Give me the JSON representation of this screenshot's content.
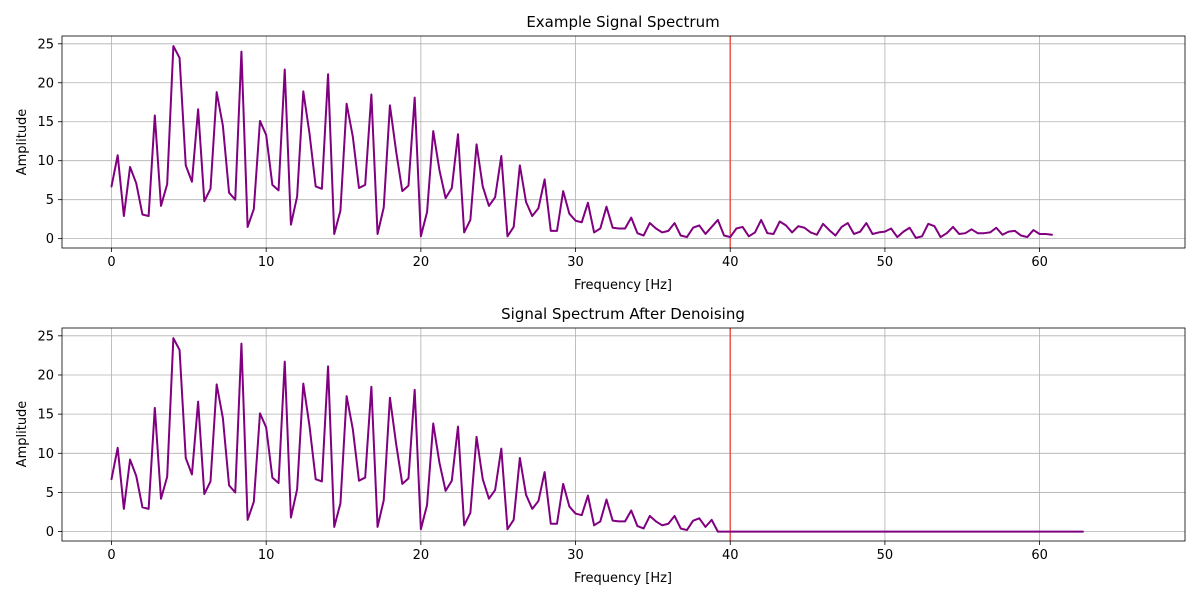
{
  "colors": {
    "signal": "#800080",
    "cutoff": "#e8564d",
    "grid": "#b0b0b0"
  },
  "chart_data": [
    {
      "type": "line",
      "title": "Example Signal Spectrum",
      "xlabel": "Frequency [Hz]",
      "ylabel": "Amplitude",
      "xlim": [
        -3.2,
        69.4
      ],
      "ylim": [
        -1.2,
        26.0
      ],
      "xticks": [
        0,
        10,
        20,
        30,
        40,
        50,
        60
      ],
      "yticks": [
        0,
        5,
        10,
        15,
        20,
        25
      ],
      "grid": true,
      "cutoff_x": 40,
      "series": [
        {
          "x_start": 0,
          "x_step": 0.4,
          "values": [
            6.7,
            10.7,
            2.9,
            9.2,
            7.1,
            3.1,
            2.9,
            15.8,
            4.2,
            7.0,
            24.7,
            23.2,
            9.4,
            7.3,
            16.6,
            4.8,
            6.4,
            18.8,
            14.5,
            5.9,
            5.0,
            24.0,
            1.5,
            3.8,
            15.1,
            13.3,
            6.9,
            6.2,
            21.7,
            1.8,
            5.4,
            18.9,
            13.5,
            6.7,
            6.4,
            21.1,
            0.6,
            3.6,
            17.3,
            13.1,
            6.5,
            6.9,
            18.5,
            0.6,
            4.0,
            17.1,
            11.2,
            6.1,
            6.8,
            18.1,
            0.3,
            3.4,
            13.8,
            8.8,
            5.2,
            6.5,
            13.4,
            0.8,
            2.4,
            12.1,
            6.7,
            4.2,
            5.3,
            10.6,
            0.3,
            1.5,
            9.4,
            4.7,
            2.9,
            3.9,
            7.6,
            1.0,
            1.0,
            6.1,
            3.2,
            2.3,
            2.1,
            4.6,
            0.8,
            1.3,
            4.1,
            1.4,
            1.3,
            1.3,
            2.7,
            0.7,
            0.4,
            2.0,
            1.3,
            0.8,
            1.0,
            2.0,
            0.4,
            0.2,
            1.4,
            1.7,
            0.6,
            1.5,
            2.4,
            0.4,
            0.2,
            1.3,
            1.5,
            0.3,
            0.8,
            2.4,
            0.7,
            0.6,
            2.2,
            1.7,
            0.8,
            1.6,
            1.4,
            0.8,
            0.5,
            1.9,
            1.1,
            0.4,
            1.5,
            2.0,
            0.6,
            0.9,
            2.0,
            0.6,
            0.8,
            0.9,
            1.3,
            0.2,
            0.9,
            1.4,
            0.1,
            0.3,
            1.9,
            1.6,
            0.2,
            0.7,
            1.5,
            0.6,
            0.7,
            1.2,
            0.7,
            0.7,
            0.8,
            1.4,
            0.5,
            0.9,
            1.0,
            0.4,
            0.2,
            1.1,
            0.6,
            0.6,
            0.5
          ]
        }
      ]
    },
    {
      "type": "line",
      "title": "Signal Spectrum After Denoising",
      "xlabel": "Frequency [Hz]",
      "ylabel": "Amplitude",
      "xlim": [
        -3.2,
        69.4
      ],
      "ylim": [
        -1.2,
        26.0
      ],
      "xticks": [
        0,
        10,
        20,
        30,
        40,
        50,
        60
      ],
      "yticks": [
        0,
        5,
        10,
        15,
        20,
        25
      ],
      "grid": true,
      "cutoff_x": 40,
      "series": [
        {
          "x_start": 0,
          "x_step": 0.4,
          "values": [
            6.7,
            10.7,
            2.9,
            9.2,
            7.1,
            3.1,
            2.9,
            15.8,
            4.2,
            7.0,
            24.7,
            23.2,
            9.4,
            7.3,
            16.6,
            4.8,
            6.4,
            18.8,
            14.5,
            5.9,
            5.0,
            24.0,
            1.5,
            3.8,
            15.1,
            13.3,
            6.9,
            6.2,
            21.7,
            1.8,
            5.4,
            18.9,
            13.5,
            6.7,
            6.4,
            21.1,
            0.6,
            3.6,
            17.3,
            13.1,
            6.5,
            6.9,
            18.5,
            0.6,
            4.0,
            17.1,
            11.2,
            6.1,
            6.8,
            18.1,
            0.3,
            3.4,
            13.8,
            8.8,
            5.2,
            6.5,
            13.4,
            0.8,
            2.4,
            12.1,
            6.7,
            4.2,
            5.3,
            10.6,
            0.3,
            1.5,
            9.4,
            4.7,
            2.9,
            3.9,
            7.6,
            1.0,
            1.0,
            6.1,
            3.2,
            2.3,
            2.1,
            4.6,
            0.8,
            1.3,
            4.1,
            1.4,
            1.3,
            1.3,
            2.7,
            0.7,
            0.4,
            2.0,
            1.3,
            0.8,
            1.0,
            2.0,
            0.4,
            0.2,
            1.4,
            1.7,
            0.6,
            1.5,
            0.0,
            0.0,
            0.0,
            0.0,
            0.0,
            0.0,
            0.0,
            0.0,
            0.0,
            0.0,
            0.0,
            0.0,
            0.0,
            0.0,
            0.0,
            0.0,
            0.0,
            0.0,
            0.0,
            0.0,
            0.0,
            0.0,
            0.0,
            0.0,
            0.0,
            0.0,
            0.0,
            0.0,
            0.0,
            0.0,
            0.0,
            0.0,
            0.0,
            0.0,
            0.0,
            0.0,
            0.0,
            0.0,
            0.0,
            0.0,
            0.0,
            0.0,
            0.0,
            0.0,
            0.0,
            0.0,
            0.0,
            0.0,
            0.0,
            0.0,
            0.0,
            0.0,
            0.0,
            0.0,
            0.0,
            0.0,
            0.0,
            0.0,
            0.0,
            0.0
          ]
        }
      ]
    }
  ]
}
